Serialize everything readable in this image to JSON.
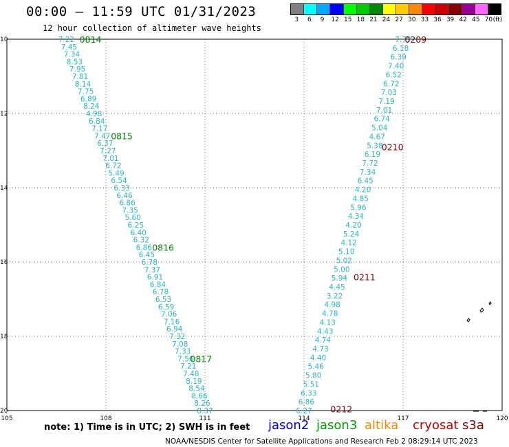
{
  "header": {
    "title": "00:00 – 11:59 UTC 01/31/2023",
    "subtitle": "12 hour collection of altimeter wave heights"
  },
  "legend": {
    "unit": "(ft)",
    "bins": [
      {
        "label": "3",
        "color": "#808080"
      },
      {
        "label": "6",
        "color": "#00ffff"
      },
      {
        "label": "9",
        "color": "#00aaff"
      },
      {
        "label": "12",
        "color": "#0000ff"
      },
      {
        "label": "15",
        "color": "#00ff00"
      },
      {
        "label": "18",
        "color": "#00cc00"
      },
      {
        "label": "21",
        "color": "#008800"
      },
      {
        "label": "24",
        "color": "#ffff00"
      },
      {
        "label": "27",
        "color": "#ffcc00"
      },
      {
        "label": "30",
        "color": "#ff8800"
      },
      {
        "label": "33",
        "color": "#ff0000"
      },
      {
        "label": "36",
        "color": "#cc0000"
      },
      {
        "label": "39",
        "color": "#880000"
      },
      {
        "label": "42",
        "color": "#990099"
      },
      {
        "label": "45",
        "color": "#ff66ff"
      },
      {
        "label": "70",
        "color": "#000000"
      }
    ]
  },
  "map": {
    "lon_range": [
      105,
      120
    ],
    "lat_range": [
      10,
      20
    ],
    "x_ticks": [
      {
        "value": 105,
        "label": "105"
      },
      {
        "value": 108,
        "label": "108"
      },
      {
        "value": 111,
        "label": "111"
      },
      {
        "value": 114,
        "label": "114"
      },
      {
        "value": 117,
        "label": "117"
      },
      {
        "value": 120,
        "label": "120"
      }
    ],
    "y_ticks": [
      {
        "value": 10,
        "label": "10"
      },
      {
        "value": 12,
        "label": "12"
      },
      {
        "value": 14,
        "label": "14"
      },
      {
        "value": 16,
        "label": "16"
      },
      {
        "value": 18,
        "label": "18"
      },
      {
        "value": 20,
        "label": "20"
      }
    ],
    "value_color": "#22b8cc",
    "tracks": [
      {
        "satellite": "jason3",
        "start": [
          106.8,
          10.0
        ],
        "end": [
          111.0,
          20.0
        ],
        "values": [
          "7.22",
          "7.45",
          "7.34",
          "8.53",
          "7.95",
          "7.81",
          "8.14",
          "7.75",
          "6.89",
          "8.24",
          "4.98",
          "6.84",
          "7.17",
          "7.47",
          "6.37",
          "7.27",
          "7.01",
          "6.72",
          "5.49",
          "6.54",
          "6.33",
          "6.46",
          "6.86",
          "7.35",
          "5.60",
          "6.25",
          "6.40",
          "6.32",
          "6.86",
          "6.45",
          "6.78",
          "7.37",
          "6.91",
          "6.84",
          "6.78",
          "6.53",
          "6.59",
          "7.06",
          "7.16",
          "6.94",
          "7.32",
          "7.08",
          "7.33",
          "7.56",
          "7.21",
          "7.48",
          "8.19",
          "8.54",
          "8.66",
          "8.26",
          "8.37"
        ],
        "time_labels": [
          {
            "text": "0814",
            "lon": 107.2,
            "lat": 10.0,
            "color": "#008800"
          },
          {
            "text": "0815",
            "lon": 108.15,
            "lat": 12.6,
            "color": "#008800"
          },
          {
            "text": "0816",
            "lon": 109.4,
            "lat": 15.6,
            "color": "#008800"
          },
          {
            "text": "0817",
            "lon": 110.55,
            "lat": 18.6,
            "color": "#008800"
          }
        ]
      },
      {
        "satellite": "cryosat",
        "start": [
          117.0,
          10.0
        ],
        "end": [
          114.0,
          20.0
        ],
        "values": [
          "7.79",
          "6.18",
          "6.39",
          "7.40",
          "6.52",
          "6.72",
          "7.03",
          "7.19",
          "7.01",
          "6.74",
          "5.04",
          "4.67",
          "5.38",
          "6.19",
          "7.72",
          "7.34",
          "6.45",
          "4.20",
          "4.85",
          "5.96",
          "4.34",
          "4.20",
          "5.24",
          "4.12",
          "5.10",
          "5.02",
          "5.00",
          "5.94",
          "4.45",
          "3.22",
          "4.98",
          "4.78",
          "4.13",
          "4.43",
          "4.74",
          "4.73",
          "4.40",
          "5.46",
          "5.80",
          "5.51",
          "6.33",
          "6.86",
          "6.27"
        ],
        "time_labels": [
          {
            "text": "0209",
            "lon": 117.05,
            "lat": 10.0,
            "color": "#880000"
          },
          {
            "text": "0210",
            "lon": 116.35,
            "lat": 12.9,
            "color": "#880000"
          },
          {
            "text": "0211",
            "lon": 115.5,
            "lat": 16.4,
            "color": "#880000"
          },
          {
            "text": "0212",
            "lon": 114.8,
            "lat": 19.95,
            "color": "#880000"
          }
        ]
      }
    ]
  },
  "footer": {
    "note": "note: 1) Time is in UTC; 2) SWH is in feet",
    "satellites": [
      {
        "name": "jason2",
        "color": "#0000dd"
      },
      {
        "name": "jason3",
        "color": "#00a000"
      },
      {
        "name": "altika",
        "color": "#ff8800"
      },
      {
        "name": "cryosat",
        "color": "#cc0000"
      },
      {
        "name": "s3a",
        "color": "#880000"
      }
    ],
    "credit": "NOAA/NESDIS Center for Satellite Applications and Research    Feb  2 08:29:14 UTC 2023"
  }
}
